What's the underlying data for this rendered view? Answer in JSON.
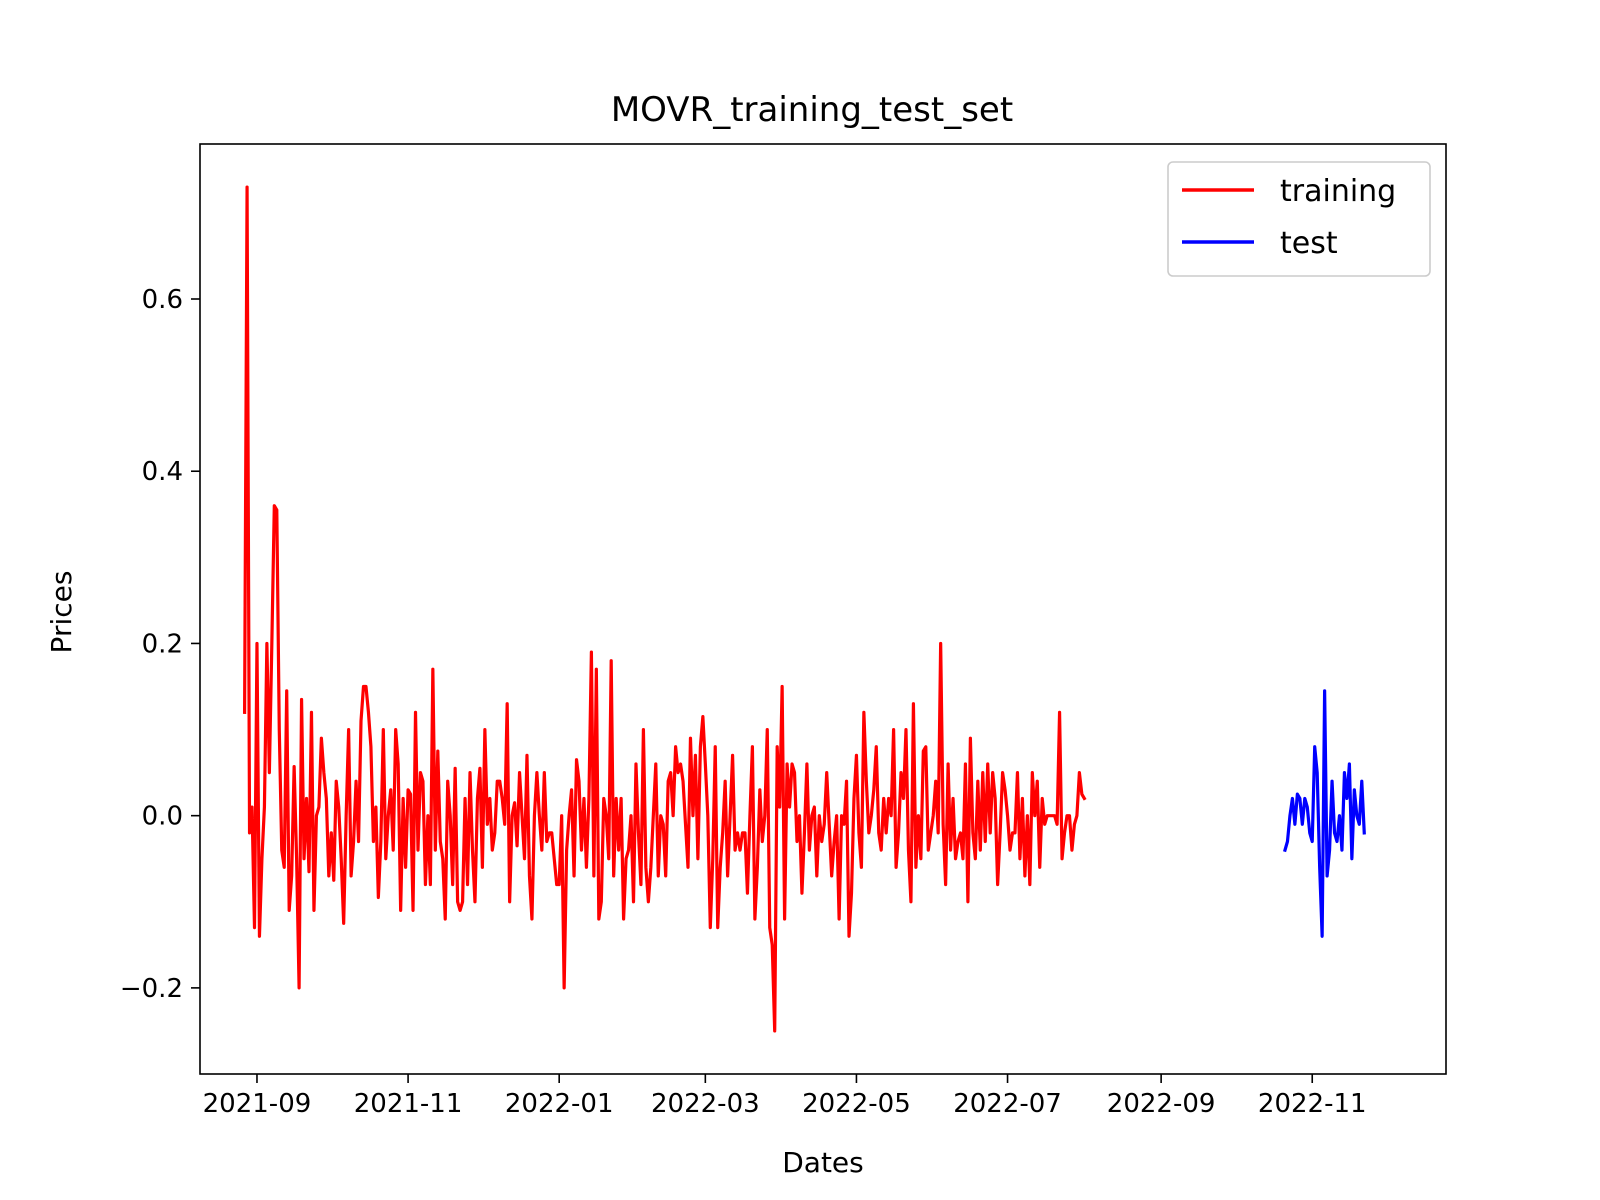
{
  "chart_data": {
    "type": "line",
    "title": "MOVR_training_test_set",
    "xlabel": "Dates",
    "ylabel": "Prices",
    "xlim": [
      "2021-08-09",
      "2022-12-25"
    ],
    "ylim": [
      -0.3,
      0.78
    ],
    "grid": false,
    "legend_position": "top-right",
    "x_ticks": [
      "2021-09",
      "2021-11",
      "2022-01",
      "2022-03",
      "2022-05",
      "2022-07",
      "2022-09",
      "2022-11"
    ],
    "y_ticks": [
      -0.2,
      0.0,
      0.2,
      0.4,
      0.6
    ],
    "y_tick_labels": [
      "−0.2",
      "0.0",
      "0.2",
      "0.4",
      "0.6"
    ],
    "series": [
      {
        "name": "training",
        "color": "#ff0000",
        "start_date": "2021-08-27",
        "values": [
          0.12,
          0.73,
          -0.02,
          0.01,
          -0.13,
          0.2,
          -0.14,
          -0.05,
          0.01,
          0.2,
          0.05,
          0.2,
          0.36,
          0.355,
          0.1,
          -0.04,
          -0.06,
          0.145,
          -0.11,
          -0.07,
          0.057,
          -0.05,
          -0.2,
          0.135,
          -0.05,
          0.02,
          -0.065,
          0.12,
          -0.11,
          0.0,
          0.01,
          0.09,
          0.05,
          0.02,
          -0.07,
          -0.02,
          -0.075,
          0.04,
          0.01,
          -0.05,
          -0.125,
          0.0,
          0.1,
          -0.07,
          -0.03,
          0.04,
          -0.03,
          0.11,
          0.15,
          0.15,
          0.12,
          0.08,
          -0.03,
          0.01,
          -0.095,
          -0.03,
          0.1,
          -0.05,
          0.0,
          0.03,
          -0.04,
          0.1,
          0.06,
          -0.11,
          0.02,
          -0.06,
          0.03,
          0.025,
          -0.11,
          0.12,
          -0.04,
          0.05,
          0.04,
          -0.08,
          0.0,
          -0.08,
          0.17,
          -0.04,
          0.075,
          -0.03,
          -0.05,
          -0.12,
          0.04,
          0.0,
          -0.08,
          0.055,
          -0.1,
          -0.11,
          -0.1,
          0.02,
          -0.08,
          0.05,
          -0.04,
          -0.1,
          0.02,
          0.055,
          -0.06,
          0.1,
          -0.01,
          0.02,
          -0.04,
          -0.02,
          0.04,
          0.04,
          0.02,
          -0.01,
          0.13,
          -0.1,
          0.0,
          0.015,
          -0.035,
          0.05,
          0.0,
          -0.05,
          0.07,
          -0.07,
          -0.12,
          0.0,
          0.05,
          0.0,
          -0.04,
          0.05,
          -0.03,
          -0.02,
          -0.02,
          -0.05,
          -0.08,
          -0.08,
          0.0,
          -0.2,
          -0.04,
          0.0,
          0.03,
          -0.07,
          0.065,
          0.04,
          -0.04,
          0.02,
          -0.06,
          0.02,
          0.19,
          -0.07,
          0.17,
          -0.12,
          -0.1,
          0.02,
          0.0,
          -0.05,
          0.18,
          -0.07,
          0.02,
          -0.04,
          0.02,
          -0.12,
          -0.05,
          -0.04,
          0.0,
          -0.1,
          0.06,
          -0.02,
          -0.08,
          0.1,
          -0.06,
          -0.1,
          -0.06,
          0.0,
          0.06,
          -0.07,
          0.0,
          -0.01,
          -0.07,
          0.04,
          0.05,
          0.0,
          0.08,
          0.05,
          0.06,
          0.04,
          -0.01,
          -0.06,
          0.09,
          0.0,
          0.07,
          -0.05,
          0.08,
          0.115,
          0.06,
          0.0,
          -0.13,
          -0.05,
          0.08,
          -0.13,
          -0.06,
          -0.02,
          0.04,
          -0.07,
          0.0,
          0.07,
          -0.04,
          -0.02,
          -0.04,
          -0.02,
          -0.02,
          -0.09,
          0.0,
          0.08,
          -0.12,
          -0.06,
          0.03,
          -0.03,
          0.0,
          0.1,
          -0.13,
          -0.15,
          -0.25,
          0.08,
          0.01,
          0.15,
          -0.12,
          0.06,
          0.01,
          0.06,
          0.05,
          -0.03,
          0.0,
          -0.09,
          -0.02,
          0.06,
          -0.04,
          0.0,
          0.01,
          -0.07,
          0.0,
          -0.03,
          -0.01,
          0.05,
          -0.01,
          -0.07,
          -0.03,
          0.0,
          -0.12,
          0.0,
          -0.01,
          0.04,
          -0.14,
          -0.09,
          0.02,
          0.07,
          -0.02,
          -0.06,
          0.12,
          0.04,
          -0.02,
          0.0,
          0.03,
          0.08,
          -0.02,
          -0.04,
          0.02,
          -0.02,
          0.02,
          0.0,
          0.1,
          -0.06,
          -0.02,
          0.05,
          0.02,
          0.1,
          -0.04,
          -0.1,
          0.13,
          -0.06,
          0.0,
          -0.05,
          0.075,
          0.08,
          -0.04,
          -0.02,
          0.0,
          0.04,
          -0.02,
          0.2,
          -0.01,
          -0.08,
          0.06,
          -0.04,
          0.02,
          -0.05,
          -0.03,
          -0.02,
          -0.05,
          0.06,
          -0.1,
          0.09,
          -0.02,
          -0.05,
          0.04,
          -0.04,
          0.05,
          -0.03,
          0.06,
          -0.02,
          0.05,
          0.02,
          -0.08,
          -0.02,
          0.05,
          0.03,
          0.0,
          -0.04,
          -0.02,
          -0.02,
          0.05,
          -0.05,
          0.02,
          -0.07,
          0.0,
          -0.08,
          0.05,
          0.0,
          0.04,
          -0.06,
          0.02,
          -0.01,
          0.0,
          0.0,
          0.0,
          0.0,
          -0.01,
          0.12,
          -0.05,
          -0.02,
          0.0,
          0.0,
          -0.04,
          -0.01,
          0.0,
          0.05,
          0.025,
          0.02
        ]
      },
      {
        "name": "test",
        "color": "#0000ff",
        "start_date": "2022-10-21",
        "values": [
          -0.04,
          -0.03,
          0.0,
          0.02,
          -0.01,
          0.025,
          0.02,
          -0.01,
          0.02,
          0.01,
          -0.02,
          -0.03,
          0.08,
          0.05,
          -0.06,
          -0.14,
          0.145,
          -0.07,
          -0.04,
          0.04,
          -0.02,
          -0.03,
          0.0,
          -0.04,
          0.05,
          0.02,
          0.06,
          -0.05,
          0.03,
          0.0,
          -0.01,
          0.04,
          -0.02
        ]
      }
    ]
  }
}
